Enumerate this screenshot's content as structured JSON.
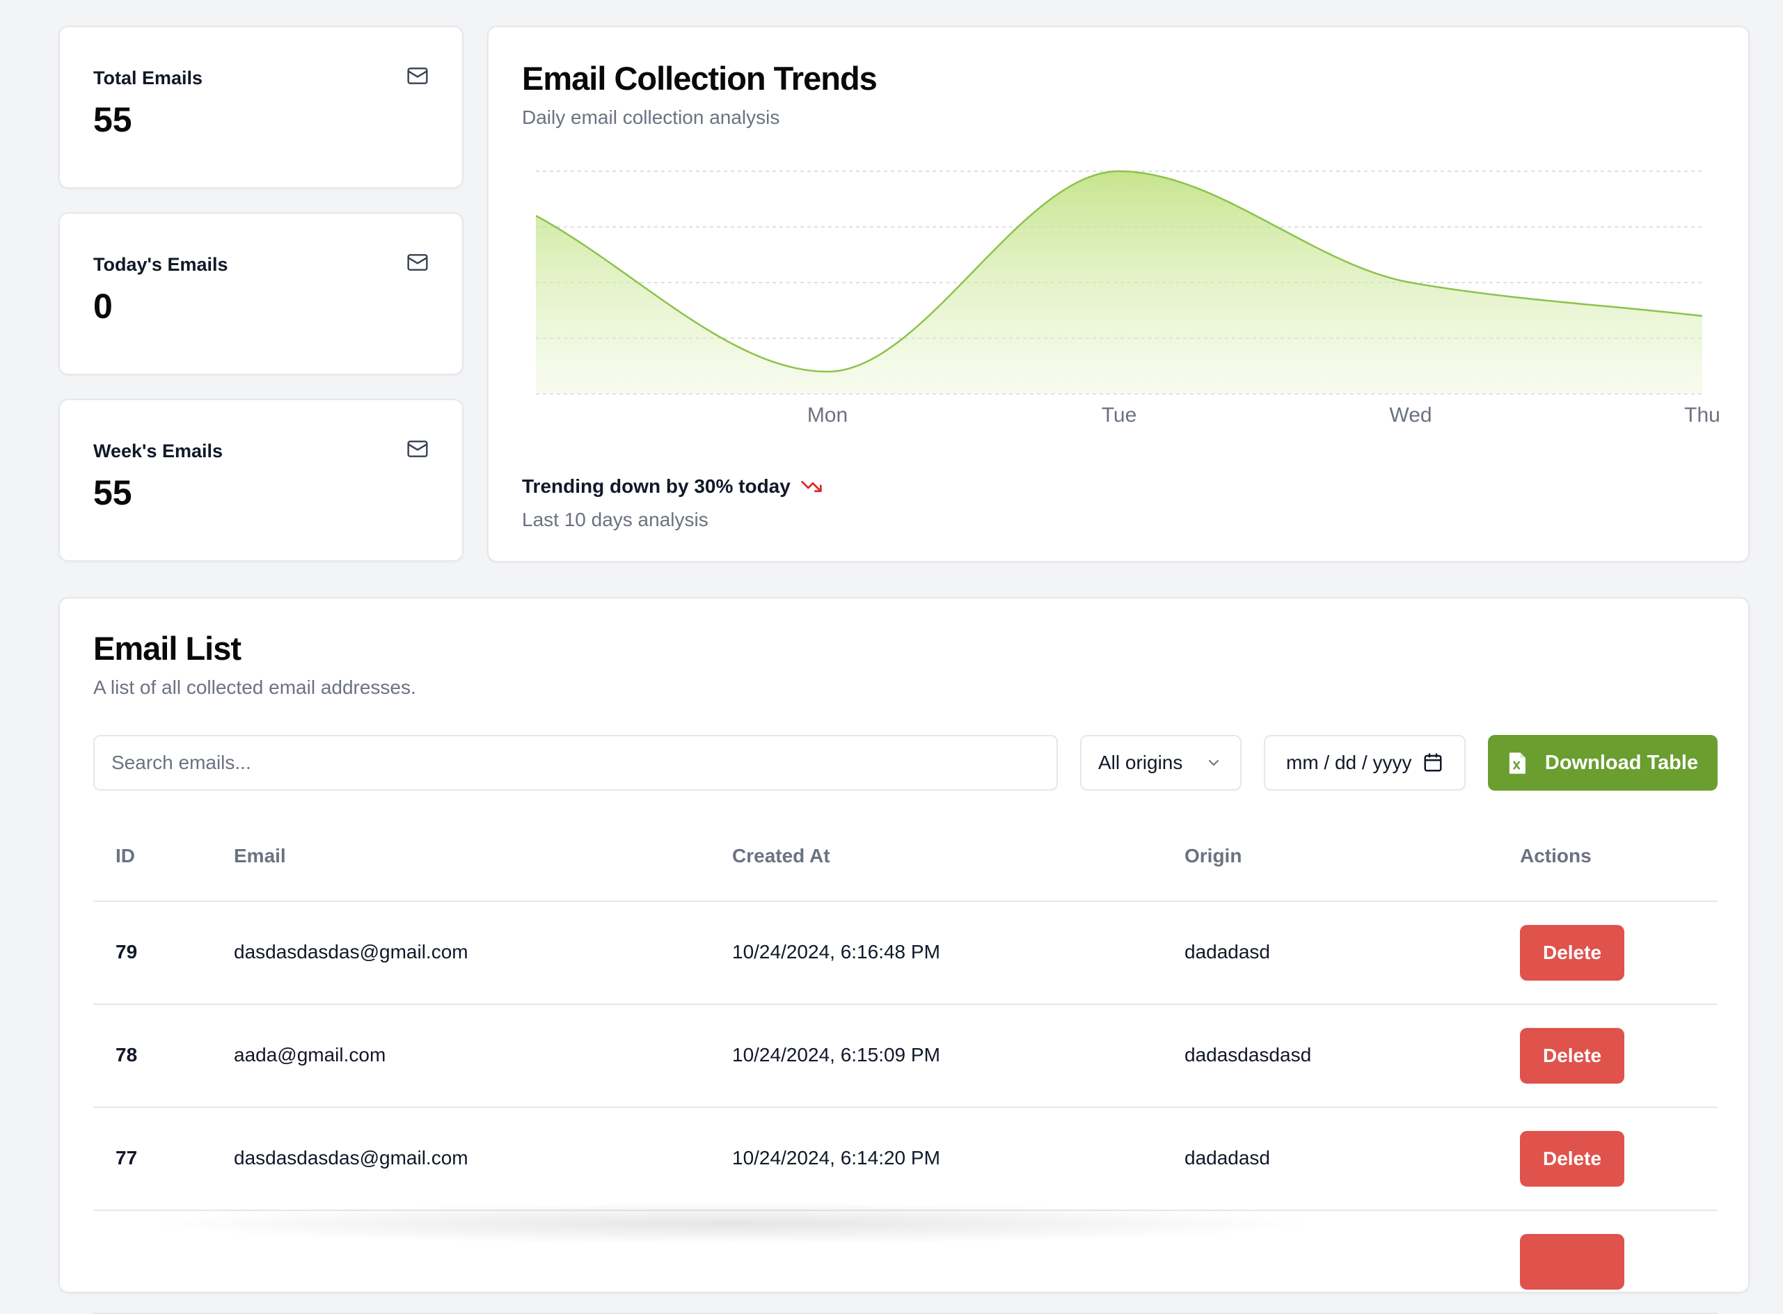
{
  "stats": [
    {
      "title": "Total Emails",
      "value": "55",
      "icon": "mail-icon"
    },
    {
      "title": "Today's Emails",
      "value": "0",
      "icon": "mail-icon"
    },
    {
      "title": "Week's Emails",
      "value": "55",
      "icon": "mail-icon"
    }
  ],
  "chart": {
    "title": "Email Collection Trends",
    "subtitle": "Daily email collection analysis",
    "trend_text": "Trending down by 30% today",
    "trend_icon": "trending-down-icon",
    "footer": "Last 10 days analysis"
  },
  "chart_data": {
    "type": "area",
    "x": [
      "",
      "Mon",
      "Tue",
      "Wed",
      "Thu"
    ],
    "tick_labels": [
      "Mon",
      "Tue",
      "Wed",
      "Thu"
    ],
    "values": [
      64,
      8,
      80,
      40,
      28
    ],
    "ylim": [
      0,
      80
    ],
    "grid": true,
    "color": "#8bc34a"
  },
  "email_list": {
    "title": "Email List",
    "subtitle": "A list of all collected email addresses.",
    "search_placeholder": "Search emails...",
    "origin_select": "All origins",
    "date_placeholder": "mm / dd / yyyy",
    "download_label": "Download Table",
    "columns": [
      "ID",
      "Email",
      "Created At",
      "Origin",
      "Actions"
    ],
    "rows": [
      {
        "id": "79",
        "email": "dasdasdasdas@gmail.com",
        "created_at": "10/24/2024, 6:16:48 PM",
        "origin": "dadadasd",
        "action": "Delete"
      },
      {
        "id": "78",
        "email": "aada@gmail.com",
        "created_at": "10/24/2024, 6:15:09 PM",
        "origin": "dadasdasdasd",
        "action": "Delete"
      },
      {
        "id": "77",
        "email": "dasdasdasdas@gmail.com",
        "created_at": "10/24/2024, 6:14:20 PM",
        "origin": "dadadasd",
        "action": "Delete"
      },
      {
        "id": "",
        "email": "",
        "created_at": "",
        "origin": "",
        "action": ""
      }
    ]
  },
  "colors": {
    "accent_green": "#6a9e2f",
    "delete_red": "#e0524c",
    "trend_red": "#dc2626"
  }
}
